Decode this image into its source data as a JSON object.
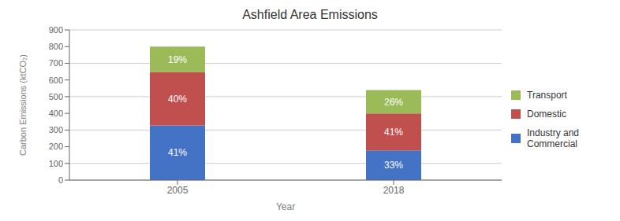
{
  "chart_data": {
    "type": "bar",
    "title": "Ashfield Area Emissions",
    "x_label": "Year",
    "y_label": "Carbon Emissions (ktCO₂)",
    "categories": [
      "2005",
      "2018"
    ],
    "series": [
      {
        "name": "Industry and Commercial",
        "color": "#4472C4",
        "values": [
          328,
          178
        ],
        "share_labels": [
          "41%",
          "33%"
        ]
      },
      {
        "name": "Domestic",
        "color": "#C0504D",
        "values": [
          320,
          221
        ],
        "share_labels": [
          "40%",
          "41%"
        ]
      },
      {
        "name": "Transport",
        "color": "#9BBB59",
        "values": [
          152,
          140
        ],
        "share_labels": [
          "19%",
          "26%"
        ]
      }
    ],
    "stacked": true,
    "ylim": [
      0,
      900
    ],
    "yticks": [
      0,
      100,
      200,
      300,
      400,
      500,
      600,
      700,
      800,
      900
    ],
    "grid": true,
    "legend": "right"
  }
}
